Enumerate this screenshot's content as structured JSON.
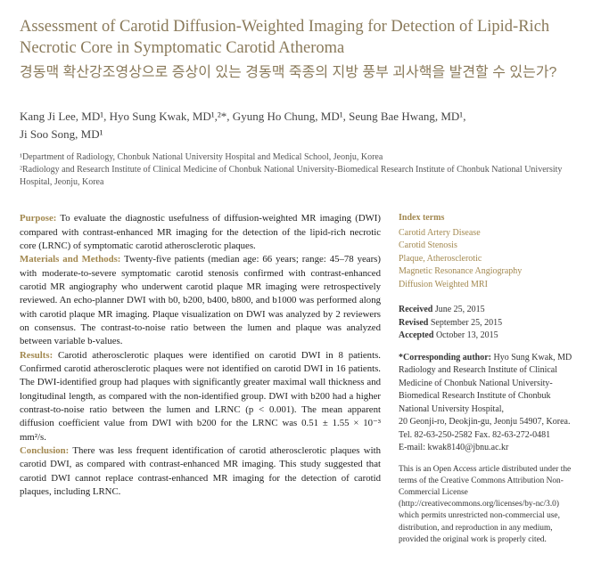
{
  "title": {
    "english": "Assessment of Carotid Diffusion-Weighted Imaging for Detection of Lipid-Rich Necrotic Core in Symptomatic Carotid Atheroma",
    "korean": "경동맥 확산강조영상으로 증상이 있는 경동맥 죽종의 지방 풍부 괴사핵을 발견할 수 있는가?",
    "color": "#8a7a5a"
  },
  "authors_line1": "Kang Ji Lee, MD¹, Hyo Sung Kwak, MD¹,²*, Gyung Ho Chung, MD¹, Seung Bae Hwang, MD¹,",
  "authors_line2": "Ji Soo Song, MD¹",
  "affiliations": [
    "¹Department of Radiology, Chonbuk National University Hospital and Medical School, Jeonju, Korea",
    "²Radiology and Research Institute of Clinical Medicine of Chonbuk National University-Biomedical Research Institute of Chonbuk National University Hospital, Jeonju, Korea"
  ],
  "abstract": {
    "purpose_label": "Purpose:",
    "purpose_text": " To evaluate the diagnostic usefulness of diffusion-weighted MR imaging (DWI) compared with contrast-enhanced MR imaging for the detection of the lipid-rich necrotic core (LRNC) of symptomatic carotid atherosclerotic plaques.",
    "mm_label": "Materials and Methods:",
    "mm_text": " Twenty-five patients (median age: 66 years; range: 45–78 years) with moderate-to-severe symptomatic carotid stenosis confirmed with contrast-enhanced carotid MR angiography who underwent carotid plaque MR imaging were retrospectively reviewed. An echo-planner DWI with b0, b200, b400, b800, and b1000 was performed along with carotid plaque MR imaging. Plaque visualization on DWI was analyzed by 2 reviewers on consensus. The contrast-to-noise ratio between the lumen and plaque was analyzed between variable b-values.",
    "results_label": "Results:",
    "results_text": " Carotid atherosclerotic plaques were identified on carotid DWI in 8 patients. Confirmed carotid atherosclerotic plaques were not identified on carotid DWI in 16 patients. The DWI-identified group had plaques with significantly greater maximal wall thickness and longitudinal length, as compared with the non-identified group. DWI with b200 had a higher contrast-to-noise ratio between the lumen and LRNC (p < 0.001). The mean apparent diffusion coefficient value from DWI with b200 for the LRNC was 0.51 ± 1.55 × 10⁻³ mm²/s.",
    "conclusion_label": "Conclusion:",
    "conclusion_text": " There was less frequent identification of carotid atherosclerotic plaques with carotid DWI, as compared with contrast-enhanced MR imaging. This study suggested that carotid DWI cannot replace contrast-enhanced MR imaging for the detection of carotid plaques, including LRNC.",
    "label_color": "#a2884f"
  },
  "sidebar": {
    "index_heading": "Index terms",
    "index_terms": [
      "Carotid Artery Disease",
      "Carotid Stenosis",
      "Plaque, Atherosclerotic",
      "Magnetic Resonance Angiography",
      "Diffusion Weighted MRI"
    ],
    "index_color": "#a2884f",
    "dates": {
      "received_label": "Received",
      "received_value": " June 25, 2015",
      "revised_label": "Revised",
      "revised_value": " September 25, 2015",
      "accepted_label": "Accepted",
      "accepted_value": " October 13, 2015"
    },
    "corresponding": {
      "label": "*Corresponding author:",
      "name": " Hyo Sung Kwak, MD",
      "addr1": "Radiology and Research Institute of Clinical Medicine of Chonbuk National University-Biomedical Research Institute of Chonbuk National University Hospital,",
      "addr2": "20 Geonji-ro, Deokjin-gu, Jeonju 54907, Korea.",
      "tel": "Tel. 82-63-250-2582  Fax. 82-63-272-0481",
      "email": "E-mail: kwak8140@jbnu.ac.kr"
    },
    "license": "This is an Open Access article distributed under the terms of the Creative Commons Attribution Non-Commercial License (http://creativecommons.org/licenses/by-nc/3.0) which permits unrestricted non-commercial use, distribution, and reproduction in any medium, provided the original work is properly cited."
  }
}
